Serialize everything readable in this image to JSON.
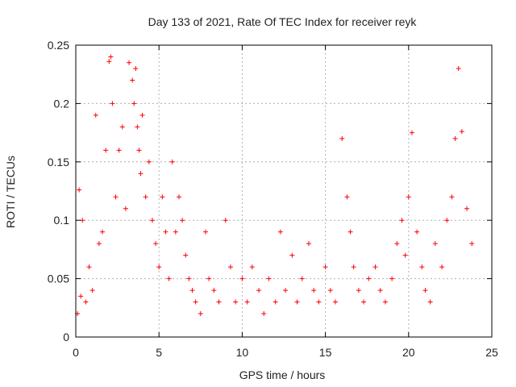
{
  "chart_data": {
    "type": "scatter",
    "title": "Day 133 of 2021, Rate Of TEC Index for receiver reyk",
    "xlabel": "GPS time / hours",
    "ylabel": "ROTI / TECUs",
    "xlim": [
      0,
      25
    ],
    "ylim": [
      0,
      0.25
    ],
    "xticks": [
      0,
      5,
      10,
      15,
      20,
      25
    ],
    "yticks": [
      0,
      0.05,
      0.1,
      0.15,
      0.2,
      0.25
    ],
    "xtick_labels": [
      "0",
      "5",
      "10",
      "15",
      "20",
      "25"
    ],
    "ytick_labels": [
      "0",
      "0.05",
      "0.1",
      "0.15",
      "0.2",
      "0.25"
    ],
    "grid": true,
    "legend": "none",
    "marker": "+",
    "color": "#ff0000",
    "series": [
      {
        "x": [
          0.1,
          0.2,
          0.3,
          0.4,
          0.6,
          0.8,
          1.0,
          1.2,
          1.4,
          1.6,
          1.8,
          2.0,
          2.1,
          2.2,
          2.4,
          2.6,
          2.8,
          3.0,
          3.2,
          3.4,
          3.5,
          3.6,
          3.7,
          3.8,
          3.9,
          4.0,
          4.2,
          4.4,
          4.6,
          4.8,
          5.0,
          5.2,
          5.4,
          5.6,
          5.8,
          6.0,
          6.2,
          6.4,
          6.6,
          6.8,
          7.0,
          7.2,
          7.5,
          7.8,
          8.0,
          8.3,
          8.6,
          9.0,
          9.3,
          9.6,
          10.0,
          10.3,
          10.6,
          11.0,
          11.3,
          11.6,
          12.0,
          12.3,
          12.6,
          13.0,
          13.3,
          13.6,
          14.0,
          14.3,
          14.6,
          15.0,
          15.3,
          15.6,
          16.0,
          16.3,
          16.5,
          16.7,
          17.0,
          17.3,
          17.6,
          18.0,
          18.3,
          18.6,
          19.0,
          19.3,
          19.6,
          19.8,
          20.0,
          20.2,
          20.5,
          20.8,
          21.0,
          21.3,
          21.6,
          22.0,
          22.3,
          22.6,
          22.8,
          23.0,
          23.2,
          23.5,
          23.8
        ],
        "y": [
          0.02,
          0.126,
          0.035,
          0.1,
          0.03,
          0.06,
          0.04,
          0.19,
          0.08,
          0.09,
          0.16,
          0.236,
          0.24,
          0.2,
          0.12,
          0.16,
          0.18,
          0.11,
          0.235,
          0.22,
          0.2,
          0.23,
          0.18,
          0.16,
          0.14,
          0.19,
          0.12,
          0.15,
          0.1,
          0.08,
          0.06,
          0.12,
          0.09,
          0.05,
          0.15,
          0.09,
          0.12,
          0.1,
          0.07,
          0.05,
          0.04,
          0.03,
          0.02,
          0.09,
          0.05,
          0.04,
          0.03,
          0.1,
          0.06,
          0.03,
          0.05,
          0.03,
          0.06,
          0.04,
          0.02,
          0.05,
          0.03,
          0.09,
          0.04,
          0.07,
          0.03,
          0.05,
          0.08,
          0.04,
          0.03,
          0.06,
          0.04,
          0.03,
          0.17,
          0.12,
          0.09,
          0.06,
          0.04,
          0.03,
          0.05,
          0.06,
          0.04,
          0.03,
          0.05,
          0.08,
          0.1,
          0.07,
          0.12,
          0.175,
          0.09,
          0.06,
          0.04,
          0.03,
          0.08,
          0.06,
          0.1,
          0.12,
          0.17,
          0.23,
          0.176,
          0.11,
          0.08
        ]
      }
    ]
  }
}
